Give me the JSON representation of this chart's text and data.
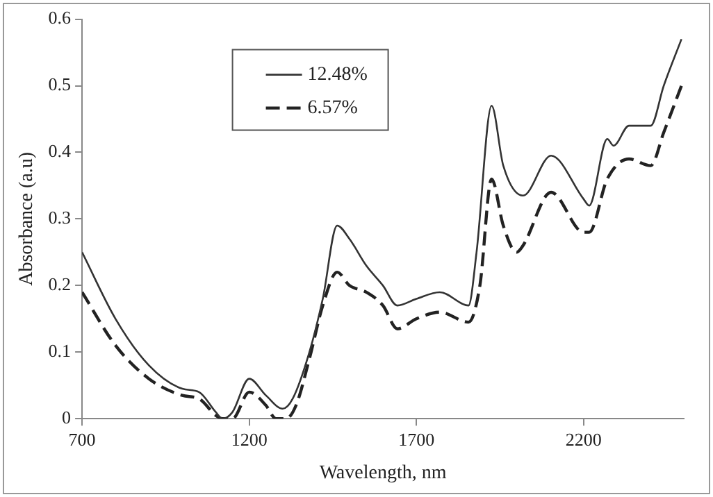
{
  "chart_data": {
    "type": "line",
    "xlabel": "Wavelength, nm",
    "ylabel": "Absorbance (a.u)",
    "xlim": [
      700,
      2500
    ],
    "xticks": [
      700,
      1200,
      1700,
      2200
    ],
    "ylim": [
      0,
      0.6
    ],
    "yticks": [
      0,
      0.1,
      0.2,
      0.3,
      0.4,
      0.5,
      0.6
    ],
    "grid": false,
    "legend": "top left",
    "marker": "none",
    "series": [
      {
        "name": "12.48%",
        "color": "#333333",
        "line_style": "solid",
        "x": [
          700,
          800,
          900,
          1000,
          1050,
          1100,
          1120,
          1150,
          1200,
          1250,
          1300,
          1330,
          1380,
          1420,
          1463,
          1500,
          1550,
          1600,
          1643,
          1700,
          1770,
          1856,
          1880,
          1925,
          1960,
          2019,
          2103,
          2200,
          2217,
          2271,
          2290,
          2336,
          2401,
          2440,
          2493
        ],
        "values": [
          0.25,
          0.15,
          0.08,
          0.045,
          0.04,
          0.01,
          0.0,
          0.01,
          0.06,
          0.035,
          0.015,
          0.03,
          0.1,
          0.18,
          0.29,
          0.27,
          0.23,
          0.2,
          0.17,
          0.18,
          0.19,
          0.17,
          0.25,
          0.47,
          0.38,
          0.335,
          0.395,
          0.33,
          0.32,
          0.42,
          0.41,
          0.44,
          0.44,
          0.5,
          0.57
        ]
      },
      {
        "name": "6.57%",
        "color": "#222222",
        "line_style": "dashed",
        "x": [
          700,
          800,
          900,
          1000,
          1050,
          1100,
          1120,
          1150,
          1200,
          1250,
          1280,
          1310,
          1340,
          1380,
          1420,
          1463,
          1500,
          1550,
          1600,
          1643,
          1700,
          1770,
          1856,
          1890,
          1925,
          1960,
          2000,
          2019,
          2103,
          2200,
          2217,
          2271,
          2336,
          2401,
          2440,
          2493
        ],
        "values": [
          0.19,
          0.11,
          0.06,
          0.035,
          0.03,
          0.005,
          0,
          0,
          0.04,
          0.02,
          0,
          0,
          0.02,
          0.09,
          0.17,
          0.22,
          0.2,
          0.19,
          0.17,
          0.135,
          0.15,
          0.16,
          0.145,
          0.2,
          0.36,
          0.29,
          0.25,
          0.26,
          0.34,
          0.28,
          0.28,
          0.36,
          0.39,
          0.38,
          0.43,
          0.5
        ]
      }
    ]
  }
}
